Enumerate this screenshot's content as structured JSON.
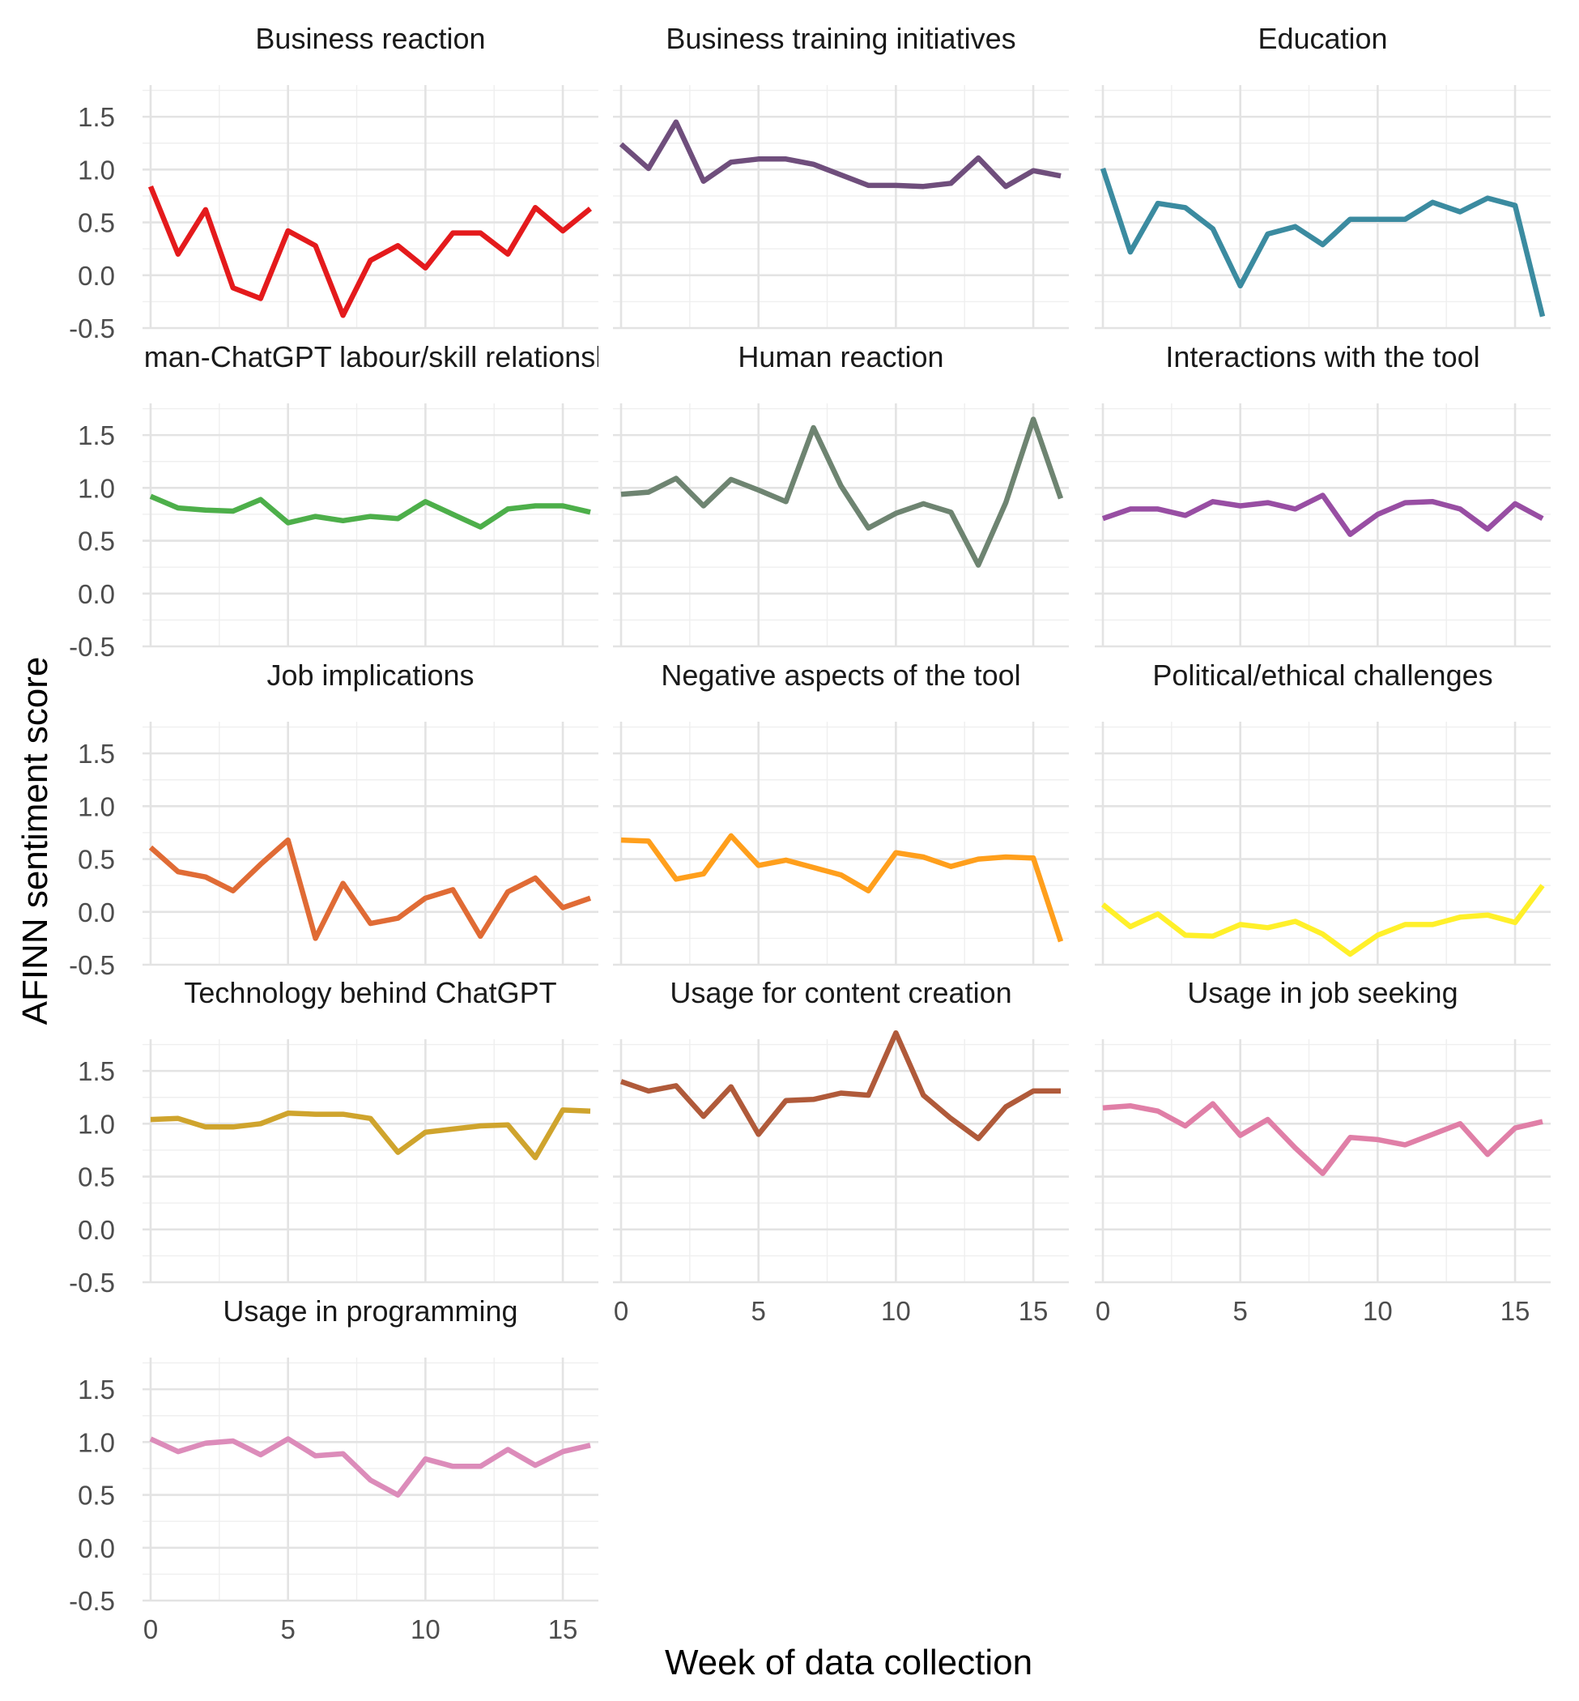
{
  "chart_data": {
    "type": "line",
    "layout": "faceted small multiples, 3 columns",
    "xlabel": "Week of data collection",
    "ylabel": "AFINN sentiment score",
    "xlim": [
      0,
      16
    ],
    "ylim": [
      -0.5,
      1.8
    ],
    "x_ticks": [
      0,
      5,
      10,
      15
    ],
    "y_ticks": [
      -0.5,
      0.0,
      0.5,
      1.0,
      1.5
    ],
    "y_tick_labels": [
      "-0.5",
      "0.0",
      "0.5",
      "1.0",
      "1.5"
    ],
    "grid": true,
    "legend": "none",
    "x": [
      0,
      1,
      2,
      3,
      4,
      5,
      6,
      7,
      8,
      9,
      10,
      11,
      12,
      13,
      14,
      15,
      16
    ],
    "panels": [
      {
        "title": "Business reaction",
        "color": "#e41a1c",
        "values": [
          0.84,
          0.2,
          0.62,
          -0.12,
          -0.22,
          0.42,
          0.28,
          -0.38,
          0.14,
          0.28,
          0.07,
          0.4,
          0.4,
          0.2,
          0.64,
          0.42,
          0.63
        ]
      },
      {
        "title": "Business training initiatives",
        "color": "#6f4e7c",
        "values": [
          1.24,
          1.01,
          1.45,
          0.89,
          1.07,
          1.1,
          1.1,
          1.05,
          0.95,
          0.85,
          0.85,
          0.84,
          0.87,
          1.11,
          0.84,
          0.99,
          0.94
        ]
      },
      {
        "title": "Education",
        "color": "#3b8ba0",
        "values": [
          1.01,
          0.22,
          0.68,
          0.64,
          0.44,
          -0.1,
          0.39,
          0.46,
          0.29,
          0.53,
          0.53,
          0.53,
          0.69,
          0.6,
          0.73,
          0.66,
          -0.39
        ]
      },
      {
        "title": "Human-ChatGPT labour/skill relationship",
        "color": "#4daf4a",
        "values": [
          0.92,
          0.81,
          0.79,
          0.78,
          0.89,
          0.67,
          0.73,
          0.69,
          0.73,
          0.71,
          0.87,
          0.75,
          0.63,
          0.8,
          0.83,
          0.83,
          0.77
        ]
      },
      {
        "title": "Human reaction",
        "color": "#6e8471",
        "values": [
          0.94,
          0.96,
          1.09,
          0.83,
          1.08,
          0.98,
          0.87,
          1.57,
          1.02,
          0.62,
          0.76,
          0.85,
          0.77,
          0.27,
          0.86,
          1.65,
          0.9
        ]
      },
      {
        "title": "Interactions with the tool",
        "color": "#984ea3",
        "values": [
          0.71,
          0.8,
          0.8,
          0.74,
          0.87,
          0.83,
          0.86,
          0.8,
          0.93,
          0.56,
          0.75,
          0.86,
          0.87,
          0.8,
          0.61,
          0.85,
          0.71
        ]
      },
      {
        "title": "Job implications",
        "color": "#e06b35",
        "values": [
          0.61,
          0.38,
          0.33,
          0.2,
          0.45,
          0.68,
          -0.25,
          0.27,
          -0.11,
          -0.06,
          0.13,
          0.21,
          -0.23,
          0.19,
          0.32,
          0.04,
          0.13
        ]
      },
      {
        "title": "Negative aspects of the tool",
        "color": "#ff9f1c",
        "values": [
          0.68,
          0.67,
          0.31,
          0.36,
          0.72,
          0.44,
          0.49,
          0.42,
          0.35,
          0.2,
          0.56,
          0.52,
          0.43,
          0.5,
          0.52,
          0.51,
          -0.28
        ]
      },
      {
        "title": "Political/ethical challenges",
        "color": "#fff02a",
        "values": [
          0.07,
          -0.14,
          -0.02,
          -0.22,
          -0.23,
          -0.12,
          -0.15,
          -0.09,
          -0.21,
          -0.4,
          -0.22,
          -0.12,
          -0.12,
          -0.05,
          -0.03,
          -0.1,
          0.25
        ]
      },
      {
        "title": "Technology behind ChatGPT",
        "color": "#cfa42d",
        "values": [
          1.04,
          1.05,
          0.97,
          0.97,
          1.0,
          1.1,
          1.09,
          1.09,
          1.05,
          0.73,
          0.92,
          0.95,
          0.98,
          0.99,
          0.68,
          1.13,
          1.12
        ]
      },
      {
        "title": "Usage for content creation",
        "color": "#b05a3a",
        "values": [
          1.4,
          1.31,
          1.36,
          1.07,
          1.35,
          0.9,
          1.22,
          1.23,
          1.29,
          1.27,
          1.86,
          1.27,
          1.05,
          0.86,
          1.16,
          1.31,
          1.31
        ]
      },
      {
        "title": "Usage in job seeking",
        "color": "#e07fa7",
        "values": [
          1.15,
          1.17,
          1.12,
          0.98,
          1.19,
          0.89,
          1.04,
          0.77,
          0.53,
          0.87,
          0.85,
          0.8,
          0.9,
          1.0,
          0.71,
          0.96,
          1.02
        ]
      },
      {
        "title": "Usage in programming",
        "color": "#dc8cba",
        "values": [
          1.03,
          0.91,
          0.99,
          1.01,
          0.88,
          1.03,
          0.87,
          0.89,
          0.64,
          0.5,
          0.84,
          0.77,
          0.77,
          0.93,
          0.78,
          0.91,
          0.97
        ]
      }
    ]
  }
}
